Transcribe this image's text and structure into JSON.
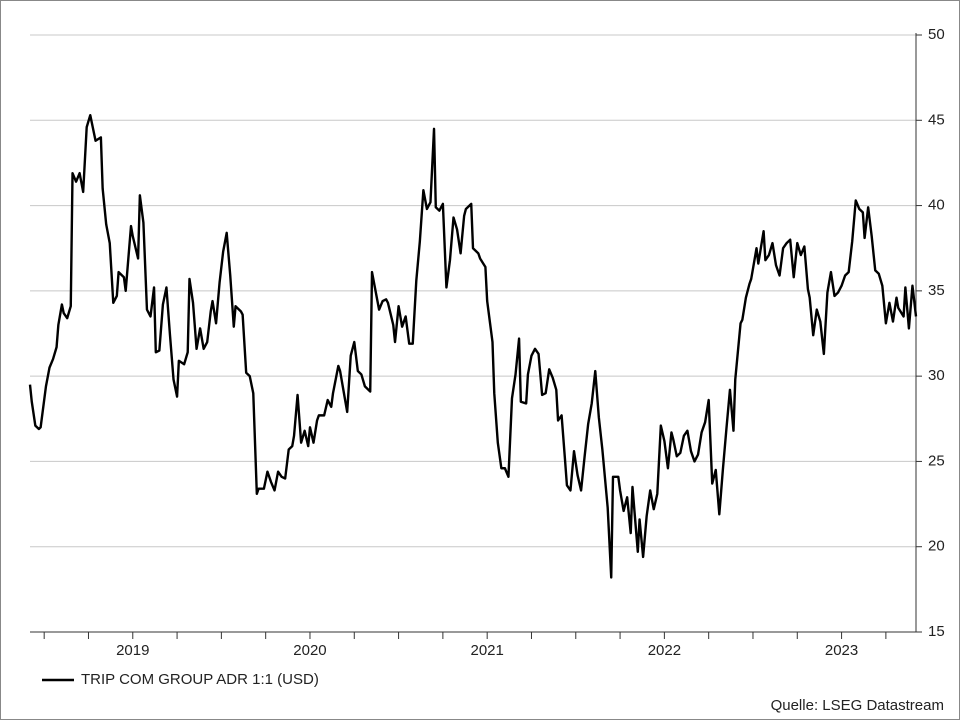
{
  "chart_data": {
    "type": "line",
    "source": "Quelle: LSEG Datastream",
    "xlim": [
      2018.92,
      2023.92
    ],
    "xticks": [
      2019,
      2020,
      2021,
      2022,
      2023
    ],
    "xminorticks": [
      2019.25,
      2019.5,
      2019.75,
      2020.25,
      2020.5,
      2020.75,
      2021.25,
      2021.5,
      2021.75,
      2022.25,
      2022.5,
      2022.75,
      2023.25,
      2023.5,
      2023.75
    ],
    "ylim": [
      15,
      50
    ],
    "yticks": [
      15,
      20,
      25,
      30,
      35,
      40,
      45,
      50
    ],
    "grid": true,
    "legend": "bottom-left",
    "x": [
      2018.92,
      2018.93,
      2018.95,
      2018.97,
      2018.98,
      2019.01,
      2019.03,
      2019.05,
      2019.07,
      2019.08,
      2019.1,
      2019.11,
      2019.13,
      2019.15,
      2019.16,
      2019.18,
      2019.2,
      2019.22,
      2019.24,
      2019.26,
      2019.28,
      2019.29,
      2019.32,
      2019.33,
      2019.35,
      2019.37,
      2019.39,
      2019.41,
      2019.42,
      2019.45,
      2019.46,
      2019.49,
      2019.5,
      2019.53,
      2019.54,
      2019.56,
      2019.58,
      2019.6,
      2019.62,
      2019.63,
      2019.65,
      2019.67,
      2019.69,
      2019.71,
      2019.73,
      2019.75,
      2019.76,
      2019.79,
      2019.81,
      2019.82,
      2019.84,
      2019.86,
      2019.88,
      2019.9,
      2019.92,
      2019.94,
      2019.95,
      2019.97,
      2019.99,
      2020.01,
      2020.03,
      2020.05,
      2020.07,
      2020.08,
      2020.11,
      2020.12,
      2020.14,
      2020.16,
      2020.18,
      2020.2,
      2020.21,
      2020.24,
      2020.26,
      2020.28,
      2020.3,
      2020.32,
      2020.34,
      2020.36,
      2020.38,
      2020.4,
      2020.41,
      2020.43,
      2020.45,
      2020.47,
      2020.49,
      2020.5,
      2020.52,
      2020.54,
      2020.55,
      2020.58,
      2020.6,
      2020.62,
      2020.63,
      2020.66,
      2020.67,
      2020.69,
      2020.71,
      2020.73,
      2020.75,
      2020.77,
      2020.79,
      2020.81,
      2020.84,
      2020.85,
      2020.87,
      2020.89,
      2020.91,
      2020.93,
      2020.94,
      2020.97,
      2020.98,
      2021.0,
      2021.02,
      2021.04,
      2021.06,
      2021.08,
      2021.1,
      2021.12,
      2021.14,
      2021.16,
      2021.18,
      2021.2,
      2021.21,
      2021.23,
      2021.25,
      2021.27,
      2021.29,
      2021.31,
      2021.33,
      2021.35,
      2021.37,
      2021.38,
      2021.41,
      2021.42,
      2021.45,
      2021.46,
      2021.49,
      2021.5,
      2021.53,
      2021.54,
      2021.56,
      2021.58,
      2021.6,
      2021.62,
      2021.64,
      2021.66,
      2021.68,
      2021.69,
      2021.72,
      2021.73,
      2021.75,
      2021.77,
      2021.79,
      2021.81,
      2021.83,
      2021.85,
      2021.87,
      2021.89,
      2021.9,
      2021.92,
      2021.94,
      2021.95,
      2021.97,
      2021.99,
      2022.01,
      2022.03,
      2022.05,
      2022.07,
      2022.09,
      2022.11,
      2022.13,
      2022.15,
      2022.18,
      2022.2,
      2022.21,
      2022.24,
      2022.25,
      2022.27,
      2022.29,
      2022.31,
      2022.32,
      2022.35,
      2022.36,
      2022.38,
      2022.4,
      2022.42,
      2022.44,
      2022.46,
      2022.48,
      2022.5,
      2022.52,
      2022.54,
      2022.55,
      2022.57,
      2022.59,
      2022.61,
      2022.63,
      2022.65,
      2022.67,
      2022.69,
      2022.71,
      2022.73,
      2022.75,
      2022.77,
      2022.79,
      2022.81,
      2022.83,
      2022.85,
      2022.87,
      2022.89,
      2022.9,
      2022.93,
      2022.94,
      2022.96,
      2022.98,
      2022.99,
      2023.02,
      2023.03,
      2023.06,
      2023.07,
      2023.09,
      2023.11,
      2023.13,
      2023.15,
      2023.17,
      2023.19,
      2023.21,
      2023.23,
      2023.25,
      2023.27,
      2023.29,
      2023.31,
      2023.32,
      2023.34,
      2023.36,
      2023.38,
      2023.4,
      2023.42,
      2023.44,
      2023.46,
      2023.48,
      2023.5,
      2023.52,
      2023.54,
      2023.56,
      2023.58,
      2023.6,
      2023.62,
      2023.63,
      2023.65,
      2023.67,
      2023.69,
      2023.71,
      2023.73,
      2023.75,
      2023.77,
      2023.79,
      2023.81,
      2023.82,
      2023.85,
      2023.86,
      2023.88,
      2023.9,
      2023.92
    ],
    "series": [
      {
        "name": "TRIP COM GROUP ADR 1:1 (USD)",
        "color": "#000000",
        "values": [
          29.5,
          28.5,
          27.1,
          26.9,
          27.0,
          29.4,
          30.5,
          31.0,
          31.7,
          33.0,
          34.2,
          33.7,
          33.4,
          34.1,
          41.9,
          41.4,
          41.9,
          40.8,
          44.6,
          45.3,
          44.3,
          43.8,
          44.0,
          41.0,
          38.9,
          37.8,
          34.3,
          34.7,
          36.1,
          35.8,
          35.0,
          38.8,
          38.2,
          36.9,
          40.6,
          39.0,
          33.9,
          33.5,
          35.2,
          31.4,
          31.5,
          34.2,
          35.2,
          32.4,
          29.8,
          28.8,
          30.9,
          30.7,
          31.4,
          35.7,
          34.3,
          31.6,
          32.8,
          31.6,
          32.0,
          33.8,
          34.4,
          33.1,
          35.5,
          37.3,
          38.4,
          35.9,
          32.9,
          34.1,
          33.8,
          33.6,
          30.2,
          30.0,
          29.0,
          23.1,
          23.4,
          23.4,
          24.4,
          23.8,
          23.3,
          24.4,
          24.1,
          24.0,
          25.7,
          25.9,
          26.5,
          28.9,
          26.1,
          26.8,
          25.9,
          27.0,
          26.1,
          27.4,
          27.7,
          27.7,
          28.6,
          28.2,
          29.0,
          30.6,
          30.3,
          29.1,
          27.9,
          31.2,
          32.0,
          30.3,
          30.1,
          29.4,
          29.1,
          36.1,
          35.0,
          33.9,
          34.4,
          34.5,
          34.3,
          33.0,
          32.0,
          34.1,
          32.9,
          33.5,
          31.9,
          31.9,
          35.6,
          37.9,
          40.9,
          39.8,
          40.2,
          44.5,
          39.9,
          39.7,
          40.1,
          35.2,
          36.8,
          39.3,
          38.6,
          37.2,
          39.4,
          39.8,
          40.1,
          37.5,
          37.2,
          36.9,
          36.4,
          34.4,
          32.0,
          29.0,
          26.1,
          24.6,
          24.6,
          24.1,
          28.7,
          30.1,
          32.2,
          28.5,
          28.4,
          30.1,
          31.2,
          31.6,
          31.3,
          28.9,
          29.0,
          30.4,
          29.9,
          29.2,
          27.4,
          27.7,
          25.0,
          23.6,
          23.3,
          25.6,
          24.2,
          23.3,
          25.3,
          27.2,
          28.4,
          30.3,
          27.6,
          25.7,
          22.3,
          18.2,
          24.1,
          24.1,
          23.3,
          22.1,
          22.9,
          20.8,
          23.5,
          19.7,
          21.6,
          19.4,
          21.8,
          23.3,
          22.2,
          23.1,
          27.1,
          26.2,
          24.6,
          26.7,
          26.3,
          25.3,
          25.5,
          26.5,
          26.8,
          25.6,
          25.0,
          25.4,
          26.7,
          27.3,
          28.6,
          23.7,
          24.5,
          21.9,
          24.5,
          26.9,
          29.2,
          26.8,
          29.8,
          33.1,
          33.3,
          34.6,
          35.4,
          35.7,
          37.5,
          36.6,
          38.5,
          36.8,
          37.1,
          37.8,
          36.5,
          35.9,
          37.5,
          37.8,
          38.0,
          35.8,
          37.8,
          37.1,
          37.6,
          35.1,
          34.6,
          32.4,
          33.9,
          33.2,
          31.3,
          34.9,
          36.1,
          34.7,
          34.9,
          35.3,
          35.9,
          36.1,
          37.9,
          40.3,
          39.8,
          39.6,
          38.1,
          39.9,
          38.2,
          36.2,
          36.0,
          35.3,
          33.1,
          34.3,
          33.2,
          34.6,
          34.0,
          33.5,
          35.2,
          32.8,
          35.3,
          33.5
        ]
      }
    ]
  }
}
